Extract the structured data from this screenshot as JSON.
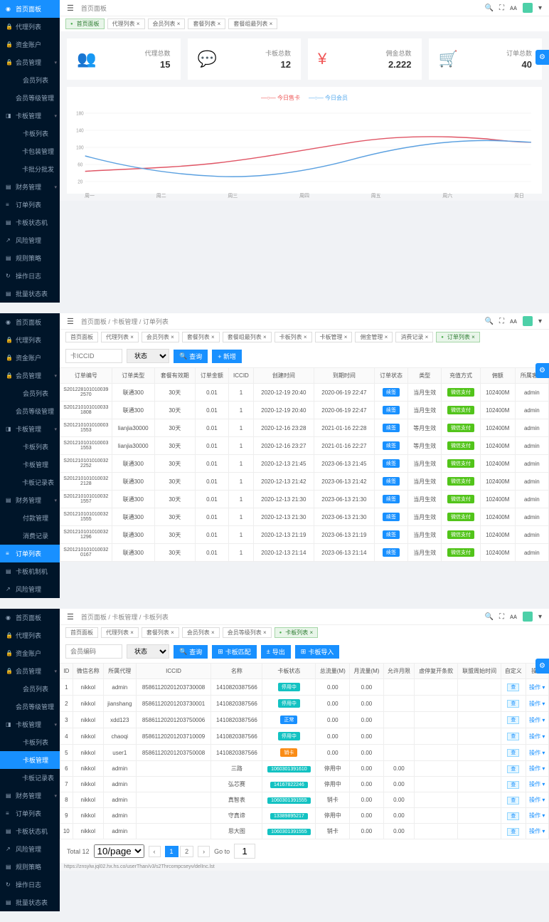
{
  "s1": {
    "sidebar": [
      {
        "icon": "◉",
        "label": "首页面板",
        "active": true,
        "arr": ""
      },
      {
        "icon": "🔒",
        "label": "代理列表",
        "arr": ""
      },
      {
        "icon": "🔒",
        "label": "资金账户",
        "arr": ""
      },
      {
        "icon": "🔒",
        "label": "会员管理",
        "arr": "▾"
      },
      {
        "icon": "",
        "label": "会员列表",
        "nested": true
      },
      {
        "icon": "",
        "label": "会员等级管理",
        "nested": true
      },
      {
        "icon": "◨",
        "label": "卡板管理",
        "arr": "▾"
      },
      {
        "icon": "",
        "label": "卡板列表",
        "nested": true
      },
      {
        "icon": "",
        "label": "卡包装管理",
        "nested": true
      },
      {
        "icon": "",
        "label": "卡批分批发",
        "nested": true
      },
      {
        "icon": "▤",
        "label": "财务管理",
        "arr": "▾"
      },
      {
        "icon": "≡",
        "label": "订单列表",
        "arr": ""
      },
      {
        "icon": "▤",
        "label": "卡板状态机",
        "arr": ""
      },
      {
        "icon": "↗",
        "label": "风险管理",
        "arr": ""
      },
      {
        "icon": "▤",
        "label": "规则策略",
        "arr": ""
      },
      {
        "icon": "↻",
        "label": "操作日志",
        "arr": ""
      },
      {
        "icon": "▤",
        "label": "批量状态表",
        "arr": ""
      }
    ],
    "breadcrumb": "首页面板",
    "tabs": [
      {
        "label": "首页面板",
        "green": true
      },
      {
        "label": "代理列表 ×"
      },
      {
        "label": "会员列表 ×"
      },
      {
        "label": "套餐列表 ×"
      },
      {
        "label": "套餐组最列表 ×"
      }
    ],
    "cards": [
      {
        "icon": "👥",
        "cls": "ci-user",
        "label": "代理总数",
        "value": "15"
      },
      {
        "icon": "💬",
        "cls": "ci-msg",
        "label": "卡板总数",
        "value": "12"
      },
      {
        "icon": "¥",
        "cls": "ci-yen",
        "label": "佣金总数",
        "value": "2.222"
      },
      {
        "icon": "🛒",
        "cls": "ci-cart",
        "label": "订单总数",
        "value": "40"
      }
    ],
    "chart": {
      "legend": [
        {
          "c": "#e55",
          "t": "今日售卡"
        },
        {
          "c": "#5ae",
          "t": "今日会员"
        }
      ],
      "xlabels": [
        "周一",
        "周二",
        "周三",
        "周四",
        "周五",
        "周六",
        "周日"
      ],
      "ylabels": [
        "20",
        "60",
        "100",
        "140",
        "180"
      ],
      "line1_color": "#e05565",
      "line2_color": "#5aa0e0",
      "line1": "M0,78 C60,75 120,74 180,68 C240,62 300,52 360,44 C420,36 480,36 540,40 C560,42 580,44 600,44",
      "line2": "M0,60 C60,74 120,82 180,84 C240,86 300,78 360,64 C420,50 480,42 540,42 C560,42 580,43 600,44"
    }
  },
  "s2": {
    "sidebar": [
      {
        "icon": "◉",
        "label": "首页面板",
        "arr": ""
      },
      {
        "icon": "🔒",
        "label": "代理列表",
        "arr": ""
      },
      {
        "icon": "🔒",
        "label": "资金账户",
        "arr": ""
      },
      {
        "icon": "🔒",
        "label": "会员管理",
        "arr": "▾"
      },
      {
        "icon": "",
        "label": "会员列表",
        "nested": true
      },
      {
        "icon": "",
        "label": "会员等级管理",
        "nested": true
      },
      {
        "icon": "◨",
        "label": "卡板管理",
        "arr": "▾"
      },
      {
        "icon": "",
        "label": "卡板列表",
        "nested": true
      },
      {
        "icon": "",
        "label": "卡板管理",
        "nested": true
      },
      {
        "icon": "",
        "label": "卡板记录表",
        "nested": true
      },
      {
        "icon": "▤",
        "label": "财务管理",
        "arr": "▾"
      },
      {
        "icon": "",
        "label": "付款管理",
        "nested": true
      },
      {
        "icon": "",
        "label": "消费记录",
        "nested": true
      },
      {
        "icon": "≡",
        "label": "订单列表",
        "active": true,
        "arr": ""
      },
      {
        "icon": "▤",
        "label": "卡板机制机",
        "arr": ""
      },
      {
        "icon": "↗",
        "label": "风险管理",
        "arr": ""
      }
    ],
    "breadcrumb_parts": [
      "首页面板",
      "卡板管理",
      "订单列表"
    ],
    "tabs": [
      {
        "label": "首页面板"
      },
      {
        "label": "代理列表 ×"
      },
      {
        "label": "会员列表 ×"
      },
      {
        "label": "套餐列表 ×"
      },
      {
        "label": "套餐组最列表 ×"
      },
      {
        "label": "卡板列表 ×"
      },
      {
        "label": "卡板管理 ×"
      },
      {
        "label": "佣金管理 ×"
      },
      {
        "label": "消费记录 ×"
      },
      {
        "label": "订单列表 ×",
        "green": true
      }
    ],
    "filter": {
      "search_ph": "卡ICCID",
      "status_ph": "状态",
      "q": "查询",
      "add": "+ 新增"
    },
    "cols": [
      "订单编号",
      "订单类型",
      "套餐有效期",
      "订单金额",
      "ICCID",
      "创建时间",
      "到期时间",
      "订单状态",
      "类型",
      "充值方式",
      "佣额",
      "所属客户"
    ],
    "rows": [
      [
        "S2012281010100392570",
        "联通300",
        "30天",
        "0.01",
        "1",
        "2020-12-19 20:40",
        "2020-06-19 22:47",
        "续签",
        "当月生效",
        "微信支付",
        "102400M",
        "admin"
      ],
      [
        "S2012101010100331808",
        "联通300",
        "30天",
        "0.01",
        "1",
        "2020-12-19 20:40",
        "2020-06-19 22:47",
        "续签",
        "当月生效",
        "微信支付",
        "102400M",
        "admin"
      ],
      [
        "S2012101010100031553",
        "lianjia30000",
        "30天",
        "0.01",
        "1",
        "2020-12-16 23:28",
        "2021-01-16 22:28",
        "续签",
        "等月生效",
        "微信支付",
        "102400M",
        "admin"
      ],
      [
        "S2012101010100031553",
        "lianjia30000",
        "30天",
        "0.01",
        "1",
        "2020-12-16 23:27",
        "2021-01-16 22:27",
        "续签",
        "等月生效",
        "微信支付",
        "102400M",
        "admin"
      ],
      [
        "S2012101010100322252",
        "联通300",
        "30天",
        "0.01",
        "1",
        "2020-12-13 21:45",
        "2023-06-13 21:45",
        "续签",
        "当月生效",
        "微信支付",
        "102400M",
        "admin"
      ],
      [
        "S2012101010100322128",
        "联通300",
        "30天",
        "0.01",
        "1",
        "2020-12-13 21:42",
        "2023-06-13 21:42",
        "续签",
        "当月生效",
        "微信支付",
        "102400M",
        "admin"
      ],
      [
        "S2012101010100321557",
        "联通300",
        "30天",
        "0.01",
        "1",
        "2020-12-13 21:30",
        "2023-06-13 21:30",
        "续签",
        "当月生效",
        "微信支付",
        "102400M",
        "admin"
      ],
      [
        "S2012101010100321555",
        "联通300",
        "30天",
        "0.01",
        "1",
        "2020-12-13 21:30",
        "2023-06-13 21:30",
        "续签",
        "当月生效",
        "微信支付",
        "102400M",
        "admin"
      ],
      [
        "S2012101010100321296",
        "联通300",
        "30天",
        "0.01",
        "1",
        "2020-12-13 21:19",
        "2023-06-13 21:19",
        "续签",
        "当月生效",
        "微信支付",
        "102400M",
        "admin"
      ],
      [
        "S2012101010100320167",
        "联通300",
        "30天",
        "0.01",
        "1",
        "2020-12-13 21:14",
        "2023-06-13 21:14",
        "续签",
        "当月生效",
        "微信支付",
        "102400M",
        "admin"
      ]
    ]
  },
  "s3": {
    "sidebar": [
      {
        "icon": "◉",
        "label": "首页面板",
        "arr": ""
      },
      {
        "icon": "🔒",
        "label": "代理列表",
        "arr": ""
      },
      {
        "icon": "🔒",
        "label": "资金账户",
        "arr": ""
      },
      {
        "icon": "🔒",
        "label": "会员管理",
        "arr": "▾"
      },
      {
        "icon": "",
        "label": "会员列表",
        "nested": true
      },
      {
        "icon": "",
        "label": "会员等级管理",
        "nested": true
      },
      {
        "icon": "◨",
        "label": "卡板管理",
        "arr": "▾"
      },
      {
        "icon": "",
        "label": "卡板列表",
        "nested": true
      },
      {
        "icon": "",
        "label": "卡板管理",
        "active": true,
        "nested": true
      },
      {
        "icon": "",
        "label": "卡板记录表",
        "nested": true
      },
      {
        "icon": "▤",
        "label": "财务管理",
        "arr": "▾"
      },
      {
        "icon": "≡",
        "label": "订单列表",
        "arr": ""
      },
      {
        "icon": "▤",
        "label": "卡板状态机",
        "arr": ""
      },
      {
        "icon": "↗",
        "label": "风险管理",
        "arr": ""
      },
      {
        "icon": "▤",
        "label": "规则策略",
        "arr": ""
      },
      {
        "icon": "↻",
        "label": "操作日志",
        "arr": ""
      },
      {
        "icon": "▤",
        "label": "批量状态表",
        "arr": ""
      }
    ],
    "breadcrumb_parts": [
      "首页面板",
      "卡板管理",
      "卡板列表"
    ],
    "tabs": [
      {
        "label": "首页面板"
      },
      {
        "label": "代理列表 ×"
      },
      {
        "label": "套餐列表 ×"
      },
      {
        "label": "会员列表 ×"
      },
      {
        "label": "会员等级列表 ×"
      },
      {
        "label": "卡板列表 ×",
        "green": true
      }
    ],
    "filter": {
      "codes_ph": "会员编码",
      "status_ph": "状态",
      "q": "查询",
      "b2": "卡板匹配",
      "b3": "导出",
      "b4": "卡板导入"
    },
    "cols": [
      "ID",
      "微信名称",
      "所属代理",
      "ICCID",
      "名称",
      "卡板状态",
      "总流量(M)",
      "月流量(M)",
      "允许月限",
      "虚停复开条款",
      "联盟周始时间",
      "自定义",
      "操作"
    ],
    "rows": [
      [
        "1",
        "nikkol",
        "admin",
        "85861120201203730008",
        "1410820387566",
        "停用中",
        "0.00",
        "0.00",
        "",
        "",
        "",
        "查",
        "操作 ▾"
      ],
      [
        "2",
        "nikkol",
        "jianshang",
        "85861120201203730001",
        "1410820387566",
        "停用中",
        "0.00",
        "0.00",
        "",
        "",
        "",
        "查",
        "操作 ▾"
      ],
      [
        "3",
        "nikkol",
        "xdd123",
        "85861120201203750006",
        "1410820387566",
        "正常",
        "0.00",
        "0.00",
        "",
        "",
        "",
        "查",
        "操作 ▾"
      ],
      [
        "4",
        "nikkol",
        "chaoqi",
        "85861120201203710009",
        "1410820387566",
        "停用中",
        "0.00",
        "0.00",
        "",
        "",
        "",
        "查",
        "操作 ▾"
      ],
      [
        "5",
        "nikkol",
        "user1",
        "85861120201203750008",
        "1410820387566",
        "销卡",
        "0.00",
        "0.00",
        "",
        "",
        "",
        "查",
        "操作 ▾"
      ],
      [
        "6",
        "nikkol",
        "admin",
        "",
        "三路",
        "1060301391610",
        "停用中",
        "0.00",
        "0.00",
        "",
        "",
        "查",
        "操作 ▾"
      ],
      [
        "7",
        "nikkol",
        "admin",
        "",
        "弘芯赛",
        "14167822246",
        "停用中",
        "0.00",
        "0.00",
        "",
        "",
        "查",
        "操作 ▾"
      ],
      [
        "8",
        "nikkol",
        "admin",
        "",
        "真智表",
        "1060301391555",
        "销卡",
        "0.00",
        "0.00",
        "",
        "",
        "查",
        "操作 ▾"
      ],
      [
        "9",
        "nikkol",
        "admin",
        "",
        "守真谛",
        "13389895217",
        "停用中",
        "0.00",
        "0.00",
        "",
        "",
        "查",
        "操作 ▾"
      ],
      [
        "10",
        "nikkol",
        "admin",
        "",
        "思大图",
        "1060301391555",
        "销卡",
        "0.00",
        "0.00",
        "",
        "",
        "查",
        "操作 ▾"
      ]
    ],
    "pagination": {
      "total": "Total 12",
      "per": "10/page",
      "pages": [
        "1",
        "2"
      ],
      "goto": "Go to",
      "gotoval": "1"
    },
    "url": "https://znsylw.jql02.hx.hs.co/userThan/v3/s2Thrcompcseyv/delInc.lst"
  }
}
